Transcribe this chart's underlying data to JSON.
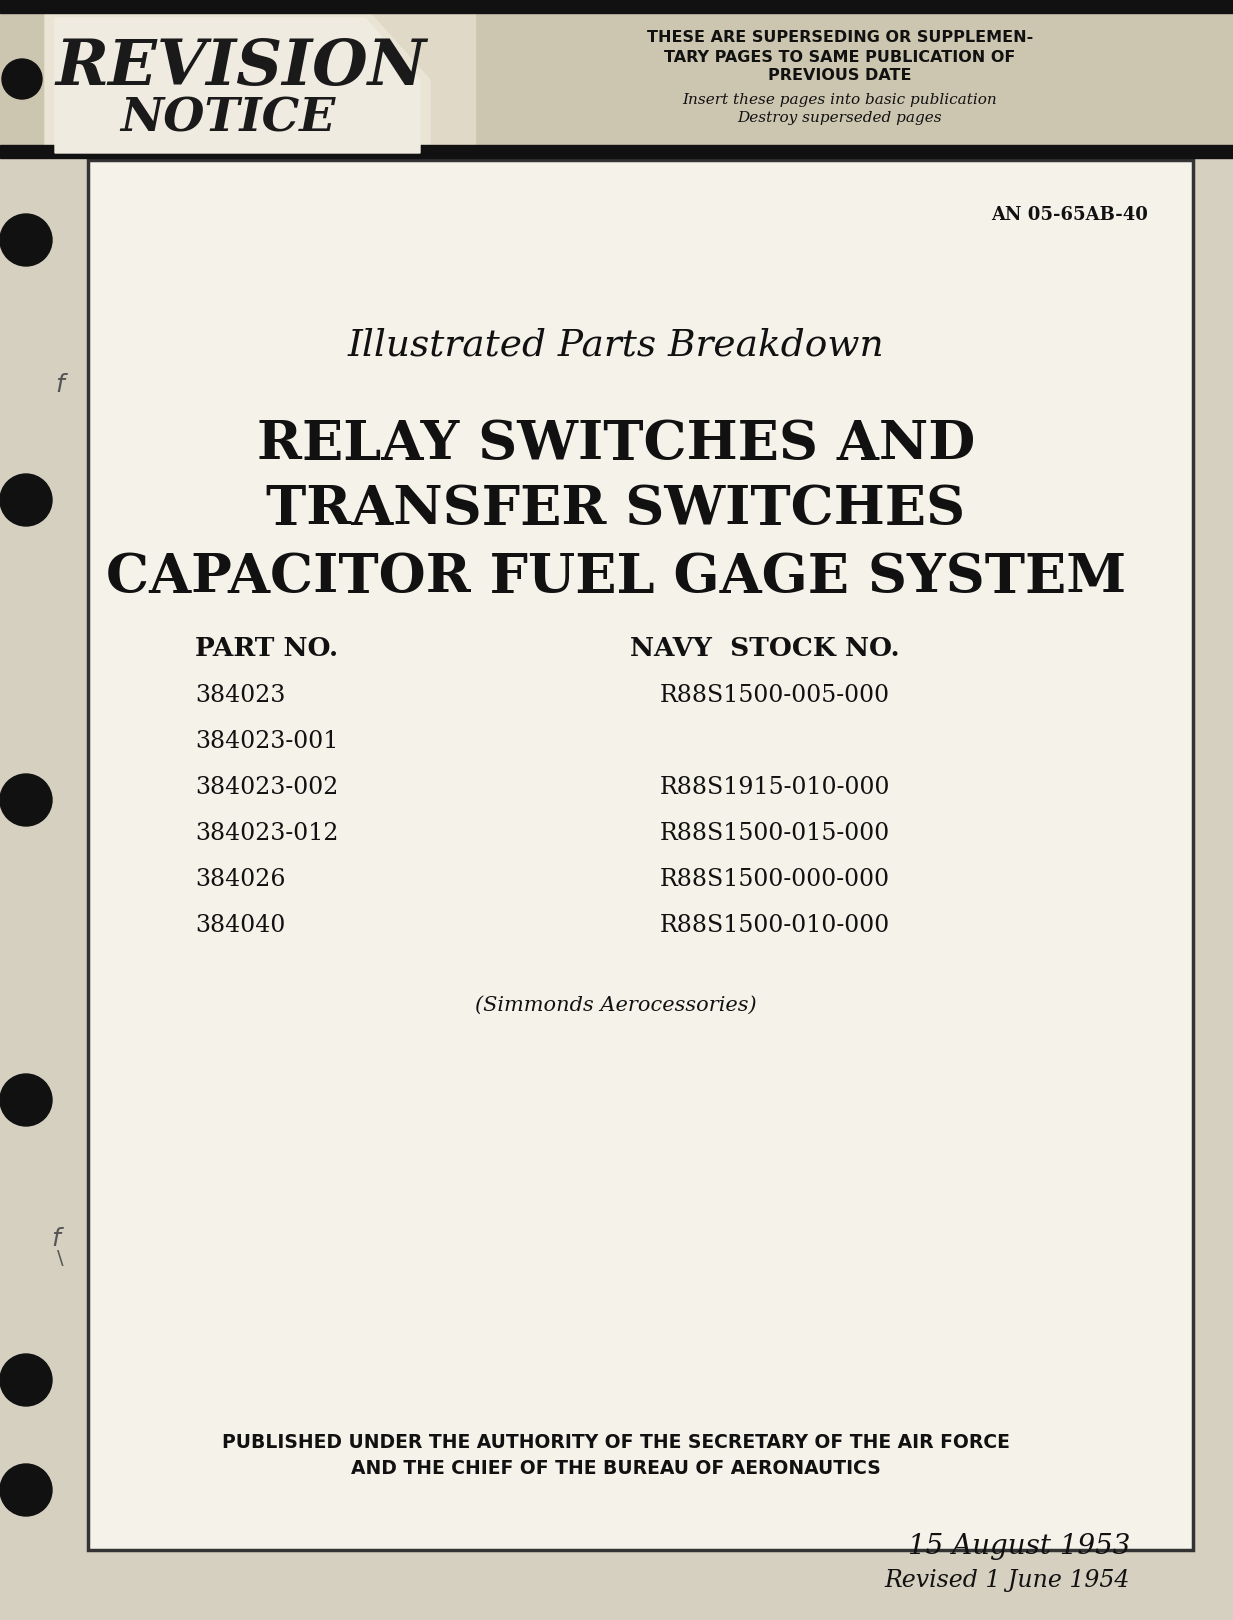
{
  "bg_color": "#d6d0c0",
  "page_bg": "#f5f2ea",
  "doc_number": "AN 05-65AB-40",
  "subtitle": "Illustrated Parts Breakdown",
  "title_line1": "RELAY SWITCHES AND",
  "title_line2": "TRANSFER SWITCHES",
  "title_line3": "CAPACITOR FUEL GAGE SYSTEM",
  "part_no_header": "PART NO.",
  "navy_stock_header": "NAVY  STOCK NO.",
  "parts": [
    [
      "384023",
      "R88S1500-005-000"
    ],
    [
      "384023-001",
      ""
    ],
    [
      "384023-002",
      "R88S1915-010-000"
    ],
    [
      "384023-012",
      "R88S1500-015-000"
    ],
    [
      "384026",
      "R88S1500-000-000"
    ],
    [
      "384040",
      "R88S1500-010-000"
    ]
  ],
  "simmonds": "(Simmonds Aerocessories)",
  "published_line1": "PUBLISHED UNDER THE AUTHORITY OF THE SECRETARY OF THE AIR FORCE",
  "published_line2": "AND THE CHIEF OF THE BUREAU OF AERONAUTICS",
  "date_line1": "15 August 1953",
  "date_line2": "Revised 1 June 1954",
  "revision_text": "REVISION",
  "notice_text": "NOTICE",
  "header_bold1": "THESE ARE SUPERSEDING OR SUPPLEMEN-",
  "header_bold2": "TARY PAGES TO SAME PUBLICATION OF",
  "header_bold3": "PREVIOUS DATE",
  "header_italic1": "Insert these pages into basic publication",
  "header_italic2": "Destroy superseded pages"
}
